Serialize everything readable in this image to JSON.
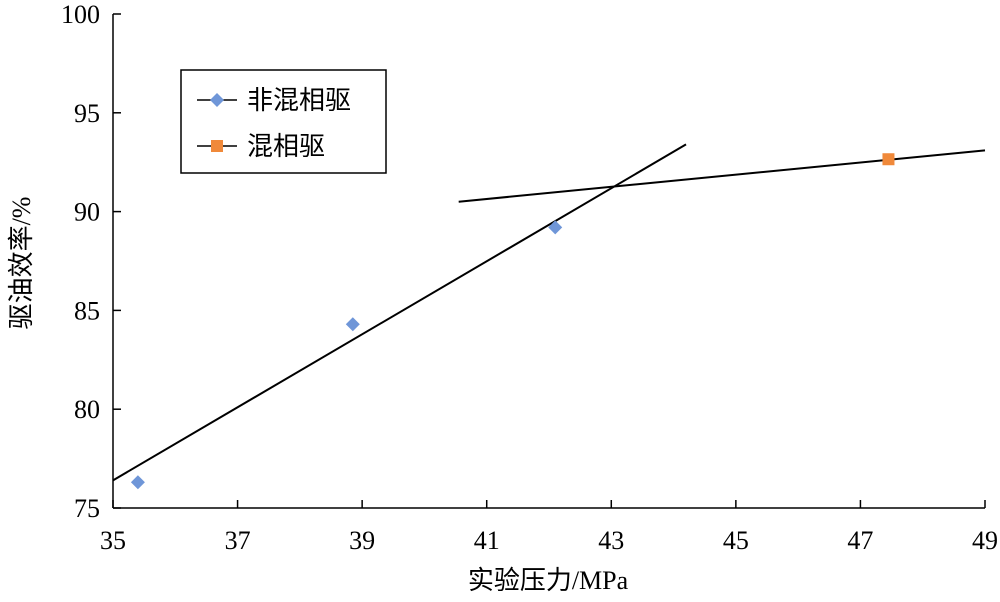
{
  "chart_data": {
    "type": "scatter",
    "xlabel": "实验压力/MPa",
    "ylabel": "驱油效率/%",
    "xlim": [
      35,
      49
    ],
    "ylim": [
      75,
      100
    ],
    "xticks": [
      35,
      37,
      39,
      41,
      43,
      45,
      47,
      49
    ],
    "yticks": [
      75,
      80,
      85,
      90,
      95,
      100
    ],
    "grid": false,
    "legend_position": "top-left",
    "series": [
      {
        "name": "非混相驱",
        "marker": "diamond",
        "color": "#6f96d8",
        "points": [
          {
            "x": 35.4,
            "y": 76.3
          },
          {
            "x": 38.85,
            "y": 84.3
          },
          {
            "x": 42.1,
            "y": 89.2
          }
        ]
      },
      {
        "name": "混相驱",
        "marker": "square",
        "color": "#f0893a",
        "points": [
          {
            "x": 47.45,
            "y": 92.65
          }
        ]
      }
    ],
    "trend_lines": [
      {
        "from": {
          "x": 35,
          "y": 76.4
        },
        "to": {
          "x": 44.2,
          "y": 93.4
        },
        "color": "#000000"
      },
      {
        "from": {
          "x": 40.55,
          "y": 90.5
        },
        "to": {
          "x": 49,
          "y": 93.1
        },
        "color": "#000000"
      }
    ]
  }
}
